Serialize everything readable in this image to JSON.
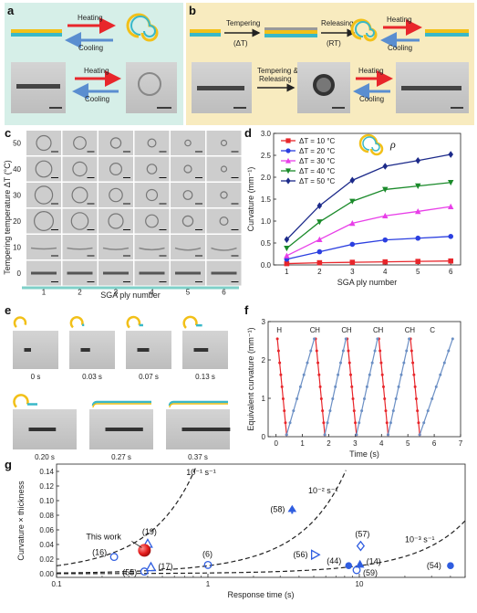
{
  "panels": {
    "a": {
      "label": "a",
      "heating": "Heating",
      "cooling": "Cooling"
    },
    "b": {
      "label": "b",
      "tempering": "Tempering",
      "delta_t": "(ΔT)",
      "releasing": "Releasing",
      "rt": "(RT)",
      "heating": "Heating",
      "cooling": "Cooling",
      "tempering_releasing_1": "Tempering &",
      "tempering_releasing_2": "Releasing"
    },
    "c": {
      "label": "c",
      "ylabel": "Tempering temperature ΔT (°C)",
      "xlabel": "SGA ply number",
      "rows": [
        "50",
        "40",
        "30",
        "20",
        "10",
        "0"
      ],
      "cols": [
        "1",
        "2",
        "3",
        "4",
        "5",
        "6"
      ]
    },
    "d": {
      "label": "d",
      "symbol": "ρ"
    },
    "e": {
      "label": "e",
      "times_top": [
        "0 s",
        "0.03 s",
        "0.07 s",
        "0.13 s"
      ],
      "times_bottom": [
        "0.20 s",
        "0.27 s",
        "0.37 s"
      ]
    },
    "f": {
      "label": "f",
      "hc_labels": [
        "H",
        "C",
        "H",
        "C",
        "H",
        "C",
        "H",
        "C",
        "H",
        "C"
      ]
    },
    "g": {
      "label": "g"
    }
  },
  "chart_data": [
    {
      "id": "d",
      "type": "line",
      "xlabel": "SGA ply number",
      "ylabel": "Curvature (mm⁻¹)",
      "x": [
        1,
        2,
        3,
        4,
        5,
        6
      ],
      "xlim": [
        0.6,
        6.3
      ],
      "ylim": [
        0,
        3.0
      ],
      "yticks": [
        0,
        0.5,
        1.0,
        1.5,
        2.0,
        2.5,
        3.0
      ],
      "ytick_labels": [
        "0.0",
        "0.5",
        "1.0",
        "1.5",
        "2.0",
        "2.5",
        "3.0"
      ],
      "legend_position": "top-left",
      "series": [
        {
          "name": "ΔT = 10 °C",
          "color": "#e8262b",
          "marker": "square",
          "values": [
            0.03,
            0.05,
            0.06,
            0.07,
            0.08,
            0.09
          ]
        },
        {
          "name": "ΔT = 20 °C",
          "color": "#2b3fe0",
          "marker": "circle",
          "values": [
            0.13,
            0.3,
            0.47,
            0.57,
            0.61,
            0.65
          ]
        },
        {
          "name": "ΔT = 30 °C",
          "color": "#e83fe8",
          "marker": "triangle-up",
          "values": [
            0.21,
            0.58,
            0.95,
            1.12,
            1.22,
            1.33
          ]
        },
        {
          "name": "ΔT = 40 °C",
          "color": "#1a8a2a",
          "marker": "triangle-down",
          "values": [
            0.38,
            0.98,
            1.45,
            1.72,
            1.8,
            1.88
          ]
        },
        {
          "name": "ΔT = 50 °C",
          "color": "#1c2a8a",
          "marker": "diamond",
          "values": [
            0.58,
            1.35,
            1.93,
            2.25,
            2.38,
            2.52
          ]
        }
      ]
    },
    {
      "id": "f",
      "type": "line",
      "xlabel": "Time (s)",
      "ylabel": "Equivalent curvature (mm⁻¹)",
      "xlim": [
        -0.3,
        7.0
      ],
      "ylim": [
        0,
        3.0
      ],
      "xticks": [
        0,
        1,
        2,
        3,
        4,
        5,
        6,
        7
      ],
      "yticks": [
        0,
        1,
        2,
        3
      ],
      "series": [
        {
          "name": "Heating",
          "color": "#e8262b",
          "segments": [
            [
              [
                0.05,
                2.55
              ],
              [
                0.4,
                0.05
              ]
            ],
            [
              [
                1.5,
                2.55
              ],
              [
                1.85,
                0.05
              ]
            ],
            [
              [
                2.7,
                2.55
              ],
              [
                3.05,
                0.05
              ]
            ],
            [
              [
                3.9,
                2.55
              ],
              [
                4.25,
                0.05
              ]
            ],
            [
              [
                5.1,
                2.55
              ],
              [
                5.45,
                0.05
              ]
            ]
          ]
        },
        {
          "name": "Cooling",
          "color": "#6b8fc4",
          "segments": [
            [
              [
                0.4,
                0.05
              ],
              [
                1.45,
                2.55
              ]
            ],
            [
              [
                1.85,
                0.05
              ],
              [
                2.65,
                2.55
              ]
            ],
            [
              [
                3.05,
                0.05
              ],
              [
                3.85,
                2.55
              ]
            ],
            [
              [
                4.25,
                0.05
              ],
              [
                5.05,
                2.55
              ]
            ],
            [
              [
                5.45,
                0.05
              ],
              [
                6.7,
                2.55
              ]
            ]
          ]
        }
      ]
    },
    {
      "id": "g",
      "type": "scatter",
      "xlabel": "Response time (s)",
      "ylabel": "Curvature × thickness",
      "xscale": "log",
      "xlim": [
        0.1,
        50
      ],
      "ylim": [
        -0.005,
        0.15
      ],
      "xticks": [
        0.1,
        1,
        10
      ],
      "xtick_labels": [
        "0.1",
        "1",
        "10"
      ],
      "yticks": [
        0,
        0.02,
        0.04,
        0.06,
        0.08,
        0.1,
        0.12,
        0.14
      ],
      "ytick_labels": [
        "0.00",
        "0.02",
        "0.04",
        "0.06",
        "0.08",
        "0.10",
        "0.12",
        "0.14"
      ],
      "rate_lines": [
        {
          "label": "10⁻¹ s⁻¹",
          "k": 0.1
        },
        {
          "label": "10⁻² s⁻¹",
          "k": 0.01
        },
        {
          "label": "10⁻³ s⁻¹",
          "k": 0.001
        }
      ],
      "points": [
        {
          "ref": "(16)",
          "x": 0.24,
          "y": 0.023,
          "marker": "circle-open"
        },
        {
          "ref": "(55)",
          "x": 0.38,
          "y": 0.003,
          "marker": "circle-open"
        },
        {
          "ref": "(19)",
          "x": 0.4,
          "y": 0.041,
          "marker": "triangle-open"
        },
        {
          "ref": "(17)",
          "x": 0.42,
          "y": 0.009,
          "marker": "triangle-open"
        },
        {
          "ref": "This work",
          "x": 0.36,
          "y": 0.032,
          "marker": "this-work"
        },
        {
          "ref": "(6)",
          "x": 1.0,
          "y": 0.012,
          "marker": "circle-open"
        },
        {
          "ref": "(58)",
          "x": 3.6,
          "y": 0.088,
          "marker": "spade"
        },
        {
          "ref": "(56)",
          "x": 5.1,
          "y": 0.026,
          "marker": "triangle-right-open"
        },
        {
          "ref": "(57)",
          "x": 10.2,
          "y": 0.038,
          "marker": "diamond-open"
        },
        {
          "ref": "(44)",
          "x": 8.5,
          "y": 0.011,
          "marker": "circle"
        },
        {
          "ref": "(14)",
          "x": 10.1,
          "y": 0.013,
          "marker": "triangle"
        },
        {
          "ref": "(59)",
          "x": 9.6,
          "y": 0.005,
          "marker": "circle-open"
        },
        {
          "ref": "(54)",
          "x": 40,
          "y": 0.011,
          "marker": "circle"
        }
      ]
    }
  ]
}
